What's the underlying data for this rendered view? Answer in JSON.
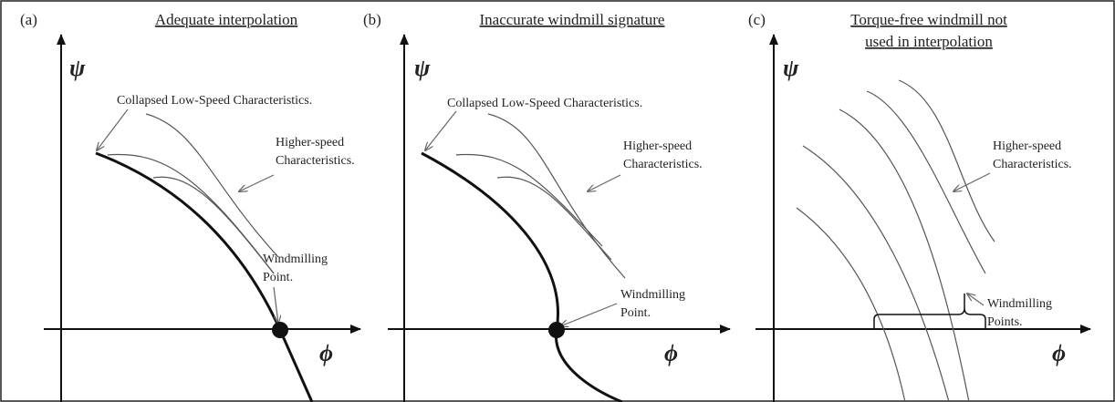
{
  "panels": [
    {
      "label": "(a)",
      "title": [
        "Adequate interpolation"
      ],
      "y_axis": "ψ",
      "x_axis": "ϕ",
      "annotations": [
        {
          "lines": [
            "Collapsed Low-Speed Characteristics."
          ]
        },
        {
          "lines": [
            "Higher-speed",
            "Characteristics."
          ]
        },
        {
          "lines": [
            "Windmilling",
            "Point."
          ]
        }
      ]
    },
    {
      "label": "(b)",
      "title": [
        "Inaccurate windmill signature"
      ],
      "y_axis": "ψ",
      "x_axis": "ϕ",
      "annotations": [
        {
          "lines": [
            "Collapsed Low-Speed Characteristics."
          ]
        },
        {
          "lines": [
            "Higher-speed",
            "Characteristics."
          ]
        },
        {
          "lines": [
            "Windmilling",
            "Point."
          ]
        }
      ]
    },
    {
      "label": "(c)",
      "title": [
        "Torque-free windmill not",
        "used in interpolation"
      ],
      "y_axis": "ψ",
      "x_axis": "ϕ",
      "annotations": [
        {
          "lines": [
            "Higher-speed",
            "Characteristics."
          ]
        },
        {
          "lines": [
            "Windmilling",
            "Points."
          ]
        }
      ]
    }
  ]
}
